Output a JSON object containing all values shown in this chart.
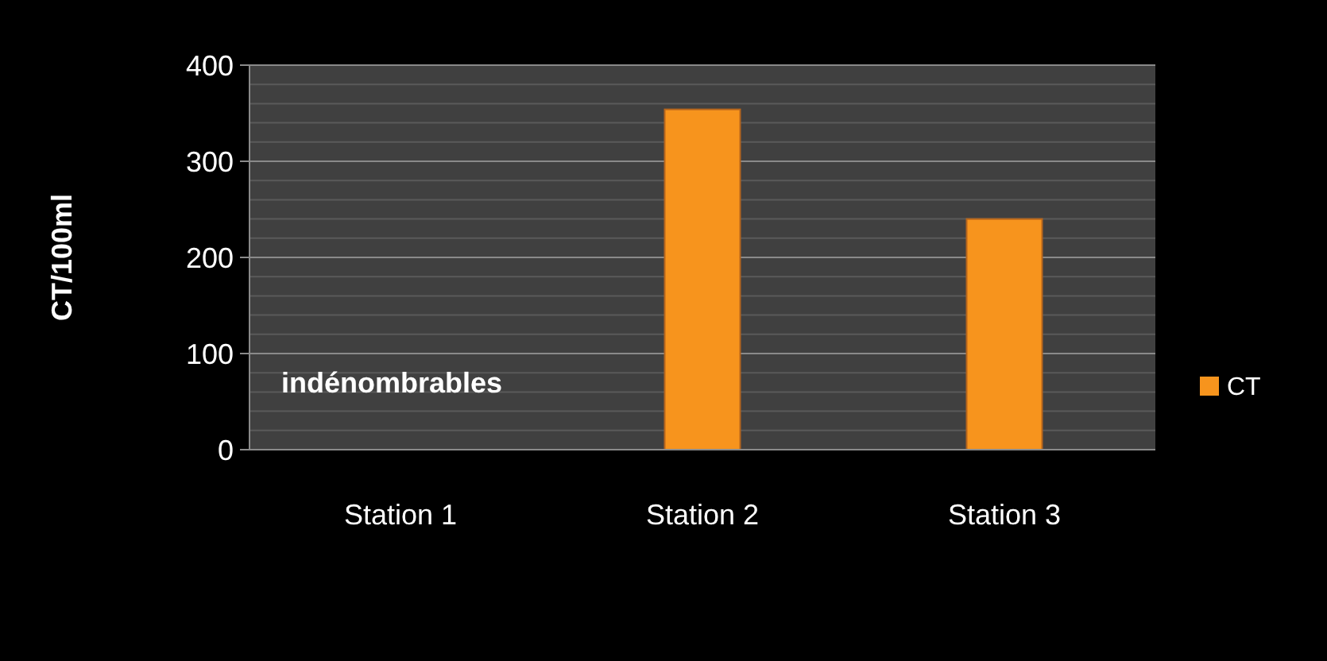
{
  "chart_data": {
    "type": "bar",
    "ylabel": "CT/100ml",
    "categories": [
      "Station 1",
      "Station 2",
      "Station 3"
    ],
    "series": [
      {
        "name": "CT",
        "color": "#f7941d",
        "values": [
          null,
          354,
          240
        ]
      }
    ],
    "ylim": [
      0,
      400
    ],
    "yticks": [
      0,
      {
        "value": 20,
        "label": null
      },
      {
        "value": 40,
        "label": null
      },
      {
        "value": 60,
        "label": null
      },
      {
        "value": 80,
        "label": null
      },
      100,
      {
        "value": 120,
        "label": null
      },
      {
        "value": 140,
        "label": null
      },
      {
        "value": 160,
        "label": null
      },
      {
        "value": 180,
        "label": null
      },
      200,
      {
        "value": 220,
        "label": null
      },
      {
        "value": 240,
        "label": null
      },
      {
        "value": 260,
        "label": null
      },
      {
        "value": 280,
        "label": null
      },
      300,
      {
        "value": 320,
        "label": null
      },
      {
        "value": 340,
        "label": null
      },
      {
        "value": 360,
        "label": null
      },
      {
        "value": 380,
        "label": null
      },
      400
    ],
    "grid": "y",
    "legend": "right",
    "annotations": [
      "indénombrables"
    ]
  }
}
